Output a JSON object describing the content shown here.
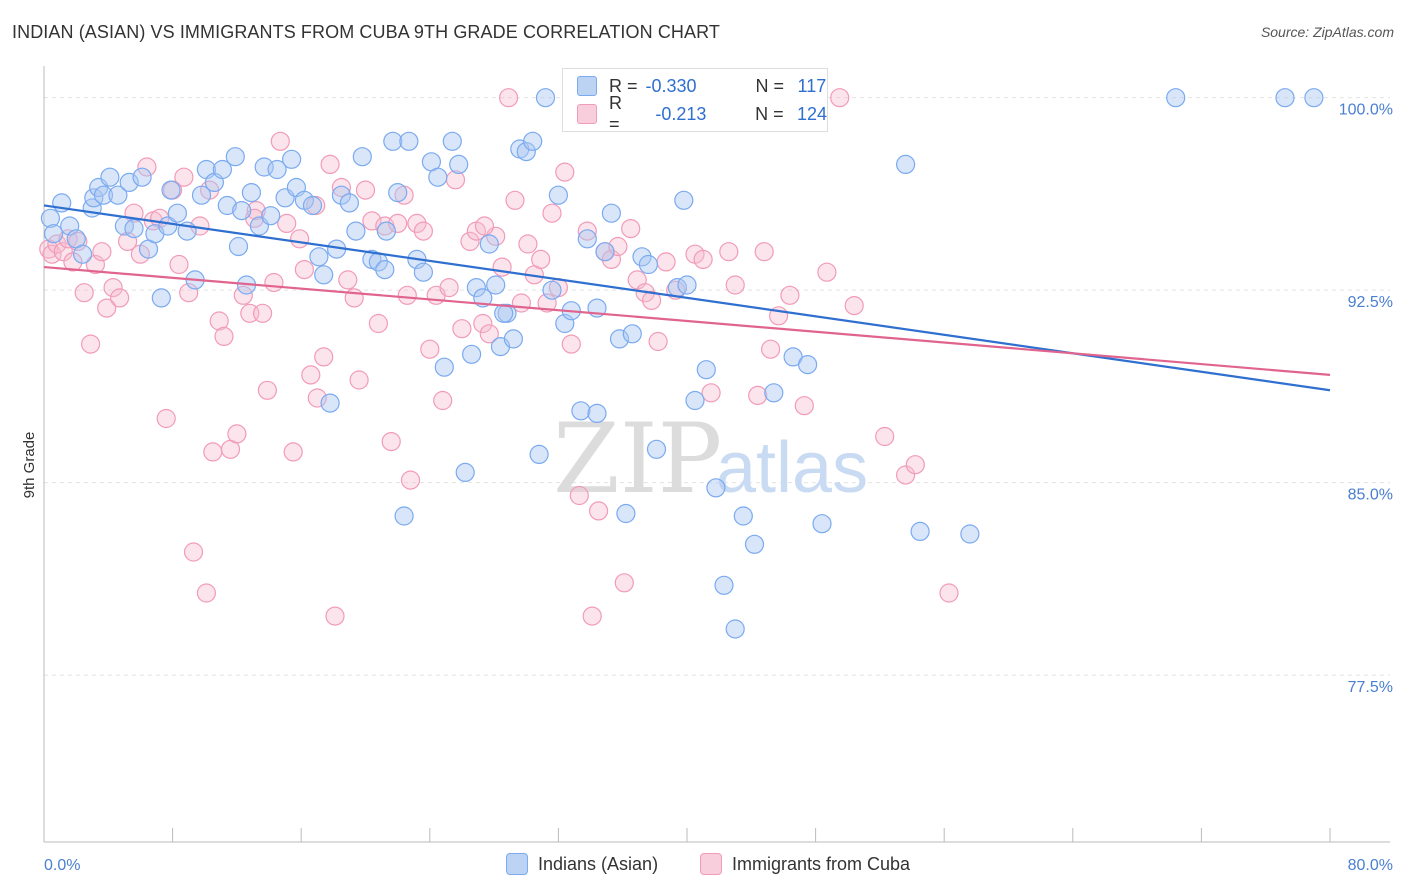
{
  "title": "INDIAN (ASIAN) VS IMMIGRANTS FROM CUBA 9TH GRADE CORRELATION CHART",
  "source": "Source: ZipAtlas.com",
  "watermark": {
    "part1": "ZIP",
    "part2": "atlas"
  },
  "legend": {
    "r_label": "R =",
    "n_label": "N =",
    "rows": [
      {
        "r": "-0.330",
        "n": "117",
        "color": "#7aaaf0"
      },
      {
        "r": "-0.213",
        "n": "124",
        "color": "#f29bb8"
      }
    ]
  },
  "colors": {
    "blue_fill": "#aac8f2",
    "blue_line": "#2f6fd0",
    "pink_fill": "#f6bcd0",
    "pink_line": "#e0648e"
  },
  "chart_data": {
    "type": "scatter",
    "title": "INDIAN (ASIAN) VS IMMIGRANTS FROM CUBA 9TH GRADE CORRELATION CHART",
    "xlabel": "",
    "ylabel": "9th Grade",
    "xlim": [
      0,
      80
    ],
    "ylim": [
      71,
      101
    ],
    "x_tick_labels": [
      "0.0%",
      "80.0%"
    ],
    "y_ticks": [
      {
        "value": 100.0,
        "label": "100.0%"
      },
      {
        "value": 92.5,
        "label": "92.5%"
      },
      {
        "value": 85.0,
        "label": "85.0%"
      },
      {
        "value": 77.5,
        "label": "77.5%"
      }
    ],
    "grid": true,
    "legend_position": "top-center",
    "series": [
      {
        "name": "Indians (Asian)",
        "trend": {
          "x": [
            0,
            80
          ],
          "y": [
            95.8,
            88.6
          ]
        },
        "points": [
          [
            0.4,
            95.3
          ],
          [
            0.6,
            94.7
          ],
          [
            1.1,
            95.9
          ],
          [
            1.6,
            95.0
          ],
          [
            2.0,
            94.5
          ],
          [
            2.4,
            93.9
          ],
          [
            3.0,
            95.7
          ],
          [
            3.1,
            96.1
          ],
          [
            3.4,
            96.5
          ],
          [
            3.7,
            96.2
          ],
          [
            4.1,
            96.9
          ],
          [
            4.6,
            96.2
          ],
          [
            5.0,
            95.0
          ],
          [
            5.3,
            96.7
          ],
          [
            5.6,
            94.9
          ],
          [
            6.1,
            96.9
          ],
          [
            6.5,
            94.1
          ],
          [
            6.9,
            94.7
          ],
          [
            7.3,
            92.2
          ],
          [
            7.7,
            95.0
          ],
          [
            7.9,
            96.4
          ],
          [
            8.3,
            95.5
          ],
          [
            8.9,
            94.8
          ],
          [
            9.4,
            92.9
          ],
          [
            9.8,
            96.2
          ],
          [
            10.1,
            97.2
          ],
          [
            10.6,
            96.7
          ],
          [
            11.1,
            97.2
          ],
          [
            11.4,
            95.8
          ],
          [
            11.9,
            97.7
          ],
          [
            12.3,
            95.6
          ],
          [
            12.6,
            92.7
          ],
          [
            12.9,
            96.3
          ],
          [
            13.4,
            95.0
          ],
          [
            13.7,
            97.3
          ],
          [
            14.1,
            95.4
          ],
          [
            14.5,
            97.2
          ],
          [
            15.0,
            96.1
          ],
          [
            15.4,
            97.6
          ],
          [
            15.7,
            96.5
          ],
          [
            16.2,
            96.0
          ],
          [
            16.7,
            95.8
          ],
          [
            17.1,
            93.8
          ],
          [
            17.4,
            93.1
          ],
          [
            17.8,
            88.1
          ],
          [
            18.2,
            94.1
          ],
          [
            18.5,
            96.2
          ],
          [
            19.0,
            95.9
          ],
          [
            19.4,
            94.8
          ],
          [
            19.8,
            97.7
          ],
          [
            20.4,
            93.7
          ],
          [
            20.8,
            93.6
          ],
          [
            21.2,
            93.3
          ],
          [
            21.7,
            98.3
          ],
          [
            22.0,
            96.3
          ],
          [
            22.4,
            83.7
          ],
          [
            22.7,
            98.3
          ],
          [
            23.2,
            93.7
          ],
          [
            23.6,
            93.2
          ],
          [
            24.1,
            97.5
          ],
          [
            24.5,
            96.9
          ],
          [
            24.9,
            89.5
          ],
          [
            25.4,
            98.3
          ],
          [
            25.8,
            97.4
          ],
          [
            26.2,
            85.4
          ],
          [
            26.6,
            90.0
          ],
          [
            26.9,
            92.6
          ],
          [
            27.3,
            92.2
          ],
          [
            27.7,
            94.3
          ],
          [
            28.1,
            92.7
          ],
          [
            28.4,
            90.3
          ],
          [
            28.8,
            91.6
          ],
          [
            29.2,
            90.6
          ],
          [
            29.6,
            98.0
          ],
          [
            30.0,
            97.9
          ],
          [
            30.4,
            98.3
          ],
          [
            30.8,
            86.1
          ],
          [
            31.2,
            100.0
          ],
          [
            31.6,
            92.5
          ],
          [
            32.0,
            96.2
          ],
          [
            32.4,
            91.2
          ],
          [
            32.8,
            91.7
          ],
          [
            33.4,
            87.8
          ],
          [
            33.8,
            94.5
          ],
          [
            34.4,
            87.7
          ],
          [
            34.9,
            94.0
          ],
          [
            35.3,
            95.5
          ],
          [
            35.8,
            90.6
          ],
          [
            36.2,
            83.8
          ],
          [
            36.6,
            90.8
          ],
          [
            37.2,
            93.8
          ],
          [
            37.6,
            93.5
          ],
          [
            38.1,
            86.3
          ],
          [
            39.4,
            92.6
          ],
          [
            39.8,
            96.0
          ],
          [
            40.0,
            92.7
          ],
          [
            40.5,
            88.2
          ],
          [
            41.2,
            89.4
          ],
          [
            41.8,
            84.8
          ],
          [
            42.3,
            81.0
          ],
          [
            43.0,
            79.3
          ],
          [
            43.5,
            83.7
          ],
          [
            44.2,
            82.6
          ],
          [
            45.4,
            88.5
          ],
          [
            46.6,
            89.9
          ],
          [
            47.5,
            89.6
          ],
          [
            48.4,
            83.4
          ],
          [
            53.6,
            97.4
          ],
          [
            54.5,
            83.1
          ],
          [
            57.6,
            83.0
          ],
          [
            70.4,
            100.0
          ],
          [
            77.2,
            100.0
          ],
          [
            79.0,
            100.0
          ],
          [
            28.6,
            91.6
          ],
          [
            34.4,
            91.8
          ],
          [
            21.3,
            94.8
          ],
          [
            12.1,
            94.2
          ]
        ]
      },
      {
        "name": "Immigrants from Cuba",
        "trend": {
          "x": [
            0,
            80
          ],
          "y": [
            93.4,
            89.2
          ]
        },
        "points": [
          [
            0.3,
            94.1
          ],
          [
            0.5,
            93.9
          ],
          [
            0.8,
            94.3
          ],
          [
            1.2,
            94.0
          ],
          [
            1.5,
            94.5
          ],
          [
            1.8,
            93.6
          ],
          [
            2.1,
            94.4
          ],
          [
            2.5,
            92.4
          ],
          [
            2.9,
            90.4
          ],
          [
            3.2,
            93.5
          ],
          [
            3.6,
            94.0
          ],
          [
            3.9,
            91.8
          ],
          [
            4.3,
            92.6
          ],
          [
            4.7,
            92.2
          ],
          [
            5.2,
            94.4
          ],
          [
            5.6,
            95.5
          ],
          [
            6.0,
            93.9
          ],
          [
            6.4,
            97.3
          ],
          [
            6.8,
            95.2
          ],
          [
            7.2,
            95.3
          ],
          [
            7.6,
            87.5
          ],
          [
            8.0,
            96.4
          ],
          [
            8.4,
            93.5
          ],
          [
            8.7,
            96.9
          ],
          [
            9.0,
            92.4
          ],
          [
            9.3,
            82.3
          ],
          [
            9.7,
            95.0
          ],
          [
            10.1,
            80.7
          ],
          [
            10.5,
            86.2
          ],
          [
            10.9,
            91.3
          ],
          [
            11.2,
            90.7
          ],
          [
            11.6,
            86.3
          ],
          [
            12.0,
            86.9
          ],
          [
            12.4,
            92.3
          ],
          [
            12.8,
            91.6
          ],
          [
            13.2,
            95.6
          ],
          [
            13.6,
            91.6
          ],
          [
            13.9,
            88.6
          ],
          [
            14.3,
            92.8
          ],
          [
            14.7,
            98.3
          ],
          [
            15.1,
            95.1
          ],
          [
            15.5,
            86.2
          ],
          [
            15.9,
            94.5
          ],
          [
            16.2,
            93.3
          ],
          [
            16.6,
            89.2
          ],
          [
            17.0,
            88.3
          ],
          [
            17.4,
            89.9
          ],
          [
            17.8,
            97.4
          ],
          [
            18.1,
            79.8
          ],
          [
            18.5,
            96.5
          ],
          [
            18.9,
            92.9
          ],
          [
            19.3,
            92.2
          ],
          [
            19.6,
            89.0
          ],
          [
            20.0,
            96.4
          ],
          [
            20.4,
            95.2
          ],
          [
            20.8,
            91.2
          ],
          [
            21.2,
            95.0
          ],
          [
            21.6,
            86.6
          ],
          [
            22.0,
            95.1
          ],
          [
            22.4,
            96.2
          ],
          [
            22.8,
            85.1
          ],
          [
            23.2,
            95.1
          ],
          [
            23.6,
            94.8
          ],
          [
            24.0,
            90.2
          ],
          [
            24.4,
            92.3
          ],
          [
            24.8,
            88.2
          ],
          [
            25.2,
            92.6
          ],
          [
            25.6,
            96.8
          ],
          [
            26.0,
            91.0
          ],
          [
            26.5,
            94.4
          ],
          [
            26.9,
            94.8
          ],
          [
            27.3,
            91.2
          ],
          [
            27.7,
            90.8
          ],
          [
            28.1,
            94.6
          ],
          [
            28.5,
            93.4
          ],
          [
            28.9,
            100.0
          ],
          [
            29.3,
            96.0
          ],
          [
            29.7,
            92.0
          ],
          [
            30.1,
            94.3
          ],
          [
            30.5,
            93.1
          ],
          [
            30.9,
            93.7
          ],
          [
            31.3,
            92.0
          ],
          [
            32.0,
            92.6
          ],
          [
            32.4,
            97.1
          ],
          [
            32.8,
            90.4
          ],
          [
            33.3,
            84.5
          ],
          [
            33.8,
            94.8
          ],
          [
            34.1,
            79.8
          ],
          [
            34.5,
            83.9
          ],
          [
            34.9,
            94.0
          ],
          [
            35.3,
            93.7
          ],
          [
            35.7,
            94.2
          ],
          [
            36.1,
            81.1
          ],
          [
            36.5,
            94.9
          ],
          [
            36.9,
            92.9
          ],
          [
            37.4,
            92.4
          ],
          [
            37.8,
            92.1
          ],
          [
            38.2,
            90.5
          ],
          [
            38.7,
            93.6
          ],
          [
            39.3,
            92.5
          ],
          [
            40.5,
            93.9
          ],
          [
            41.0,
            93.7
          ],
          [
            41.5,
            88.5
          ],
          [
            42.6,
            94.0
          ],
          [
            43.0,
            92.7
          ],
          [
            44.4,
            88.4
          ],
          [
            44.8,
            94.0
          ],
          [
            45.2,
            90.2
          ],
          [
            45.7,
            91.5
          ],
          [
            46.4,
            92.3
          ],
          [
            47.3,
            88.0
          ],
          [
            48.7,
            93.2
          ],
          [
            49.5,
            100.0
          ],
          [
            50.4,
            91.9
          ],
          [
            52.3,
            86.8
          ],
          [
            53.6,
            85.3
          ],
          [
            54.2,
            85.7
          ],
          [
            56.3,
            80.7
          ],
          [
            22.6,
            92.3
          ],
          [
            10.3,
            96.4
          ],
          [
            16.9,
            95.8
          ],
          [
            13.1,
            95.3
          ],
          [
            27.4,
            95.0
          ],
          [
            31.6,
            95.5
          ]
        ]
      }
    ]
  },
  "bottom_legend": [
    {
      "label": "Indians (Asian)",
      "color": "#aac8f2"
    },
    {
      "label": "Immigrants from Cuba",
      "color": "#f6bcd0"
    }
  ]
}
